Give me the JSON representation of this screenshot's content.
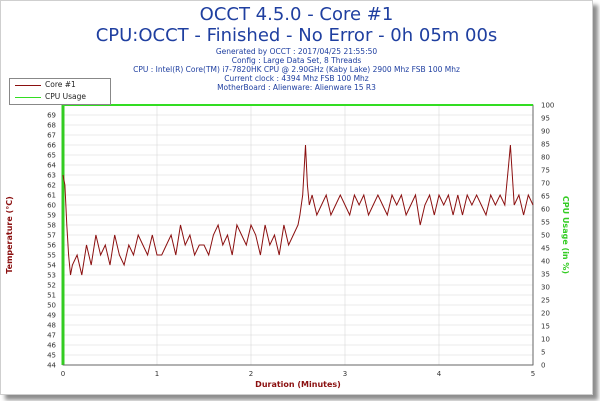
{
  "header": {
    "title": "OCCT 4.5.0 - Core #1",
    "subtitle": "CPU:OCCT - Finished - No Error - 0h 05m 00s",
    "info_lines": [
      "Generated by OCCT : 2017/04/25 21:55:50",
      "Config : Large Data Set, 8 Threads",
      "CPU : Intel(R) Core(TM) i7-7820HK CPU @ 2.90GHz (Kaby Lake) 2900 Mhz FSB 100 Mhz",
      "Current clock : 4394 Mhz FSB 100 Mhz",
      "MotherBoard : Alienware: Alienware 15 R3"
    ]
  },
  "legend": {
    "items": [
      {
        "label": "Core #1",
        "color": "#8b1010"
      },
      {
        "label": "CPU Usage",
        "color": "#33dd22"
      }
    ]
  },
  "colors": {
    "temp_axis": "#8b1010",
    "usage_axis": "#33cc22",
    "title": "#1f3fa0",
    "axis_text": "#333333",
    "grid": "#d8d8d8",
    "xlabel": "#8b1010"
  },
  "chart_data": {
    "type": "line",
    "title": "OCCT 4.5.0 - Core #1",
    "xlabel": "Duration (Minutes)",
    "ylabel": "Temperature (°C)",
    "y2label": "CPU Usage (in %)",
    "xlim": [
      0,
      5
    ],
    "ylim": [
      44,
      70
    ],
    "y2lim": [
      0,
      100
    ],
    "x_ticks": [
      0,
      1,
      2,
      3,
      4,
      5
    ],
    "y_ticks": [
      44,
      45,
      46,
      47,
      48,
      49,
      50,
      51,
      52,
      53,
      54,
      55,
      56,
      57,
      58,
      59,
      60,
      61,
      62,
      63,
      64,
      65,
      66,
      67,
      68,
      69
    ],
    "y2_ticks": [
      0,
      5,
      10,
      15,
      20,
      25,
      30,
      35,
      40,
      45,
      50,
      55,
      60,
      65,
      70,
      75,
      80,
      85,
      90,
      95,
      100
    ],
    "grid": true,
    "legend_position": "top-left",
    "series": [
      {
        "name": "Core #1",
        "axis": "left",
        "color": "#8b1010",
        "x": [
          0,
          0.02,
          0.04,
          0.06,
          0.08,
          0.1,
          0.15,
          0.2,
          0.25,
          0.3,
          0.35,
          0.4,
          0.45,
          0.5,
          0.55,
          0.6,
          0.65,
          0.7,
          0.75,
          0.8,
          0.85,
          0.9,
          0.95,
          1.0,
          1.05,
          1.1,
          1.15,
          1.2,
          1.25,
          1.3,
          1.35,
          1.4,
          1.45,
          1.5,
          1.55,
          1.6,
          1.65,
          1.7,
          1.75,
          1.8,
          1.85,
          1.9,
          1.95,
          2.0,
          2.05,
          2.1,
          2.15,
          2.2,
          2.25,
          2.3,
          2.35,
          2.4,
          2.45,
          2.5,
          2.52,
          2.55,
          2.58,
          2.6,
          2.62,
          2.65,
          2.7,
          2.75,
          2.8,
          2.85,
          2.9,
          2.95,
          3.0,
          3.05,
          3.1,
          3.15,
          3.2,
          3.25,
          3.3,
          3.35,
          3.4,
          3.45,
          3.5,
          3.55,
          3.6,
          3.65,
          3.7,
          3.75,
          3.8,
          3.85,
          3.9,
          3.95,
          4.0,
          4.05,
          4.1,
          4.15,
          4.2,
          4.25,
          4.3,
          4.35,
          4.4,
          4.45,
          4.5,
          4.55,
          4.6,
          4.65,
          4.7,
          4.72,
          4.74,
          4.76,
          4.78,
          4.8,
          4.85,
          4.9,
          4.95,
          5.0
        ],
        "values": [
          63,
          62,
          58,
          55,
          53,
          54,
          55,
          53,
          56,
          54,
          57,
          55,
          56,
          54,
          57,
          55,
          54,
          56,
          55,
          57,
          56,
          55,
          57,
          55,
          55,
          56,
          57,
          55,
          58,
          56,
          57,
          55,
          56,
          56,
          55,
          57,
          58,
          56,
          57,
          55,
          58,
          57,
          56,
          58,
          57,
          55,
          58,
          56,
          57,
          55,
          58,
          56,
          57,
          58,
          59,
          61,
          66,
          62,
          60,
          61,
          59,
          60,
          61,
          59,
          60,
          61,
          60,
          59,
          61,
          60,
          61,
          59,
          60,
          61,
          60,
          59,
          61,
          60,
          61,
          59,
          60,
          61,
          58,
          60,
          61,
          59,
          61,
          60,
          61,
          59,
          61,
          59,
          61,
          60,
          61,
          60,
          59,
          61,
          60,
          61,
          60,
          62,
          64,
          66,
          63,
          60,
          61,
          59,
          61,
          60
        ]
      },
      {
        "name": "CPU Usage",
        "axis": "right",
        "color": "#33dd22",
        "x": [
          0,
          5
        ],
        "values": [
          100,
          100
        ]
      }
    ]
  }
}
